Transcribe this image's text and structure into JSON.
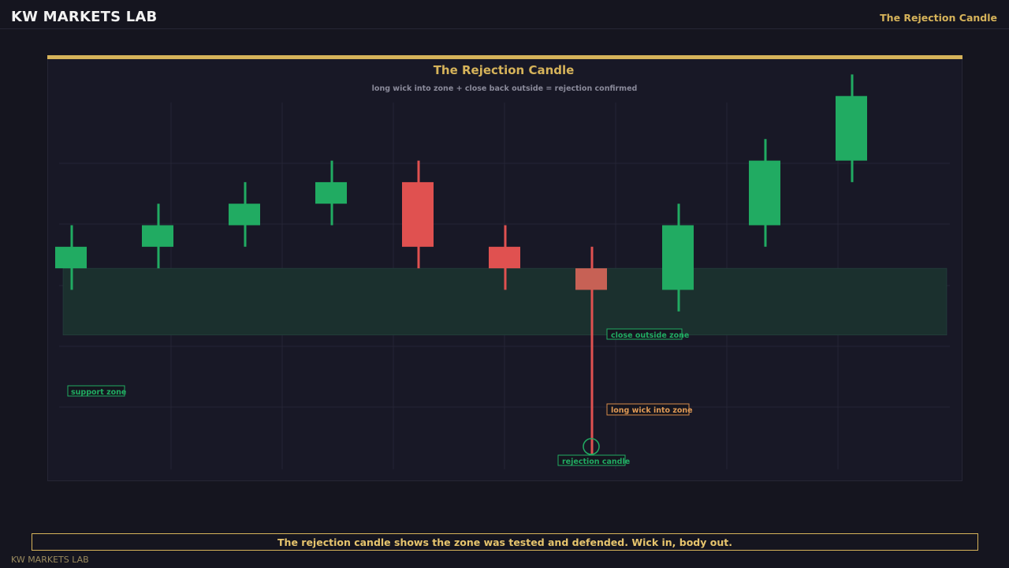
{
  "header": {
    "brand": "KW MARKETS LAB",
    "nav_title": "The Rejection Candle"
  },
  "chart_data": {
    "type": "candlestick",
    "title": "The Rejection Candle",
    "subtitle": "long wick into zone + close back outside = rejection confirmed",
    "grid": true,
    "zone": {
      "label": "support zone",
      "low": 6.2,
      "high": 9.3
    },
    "candles": [
      {
        "open": 9.3,
        "close": 10.3,
        "high": 11.3,
        "low": 8.3
      },
      {
        "open": 10.3,
        "close": 11.3,
        "high": 12.3,
        "low": 9.3
      },
      {
        "open": 11.3,
        "close": 12.3,
        "high": 13.3,
        "low": 10.3
      },
      {
        "open": 12.3,
        "close": 13.3,
        "high": 14.3,
        "low": 11.3
      },
      {
        "open": 13.3,
        "close": 10.3,
        "high": 14.3,
        "low": 9.3
      },
      {
        "open": 10.3,
        "close": 9.3,
        "high": 11.3,
        "low": 8.3
      },
      {
        "open": 9.3,
        "close": 8.3,
        "high": 10.3,
        "low": 0.3,
        "rejection": true
      },
      {
        "open": 8.3,
        "close": 11.3,
        "high": 12.3,
        "low": 7.3
      },
      {
        "open": 11.3,
        "close": 14.3,
        "high": 15.3,
        "low": 10.3
      },
      {
        "open": 14.3,
        "close": 17.3,
        "high": 18.3,
        "low": 13.3
      }
    ],
    "annotations": {
      "close_outside": "close outside zone",
      "long_wick": "long wick into zone",
      "rejection": "rejection candle"
    },
    "colors": {
      "up": "#21ab62",
      "down": "#e05150",
      "rejection_body": "#c76155",
      "zone_fill": "#1b302e",
      "accent": "#d6b35a",
      "grid": "#252535"
    }
  },
  "footer": {
    "message": "The rejection candle shows the zone was tested and defended. Wick in, body out.",
    "brand": "KW MARKETS LAB"
  }
}
